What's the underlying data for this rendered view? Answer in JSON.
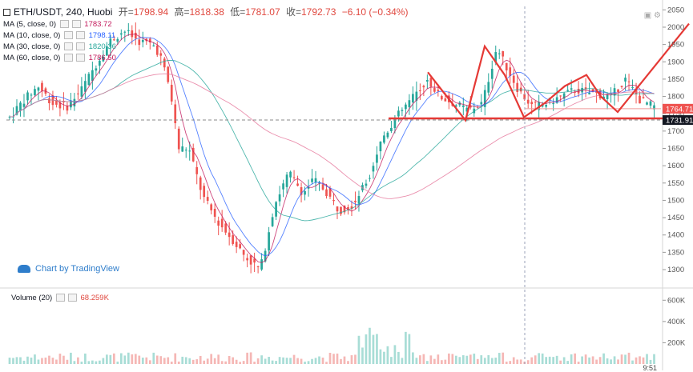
{
  "header": {
    "symbol": "ETH/USDT, 240, Huobi",
    "open_label": "开=",
    "open": "1798.94",
    "high_label": "高=",
    "high": "1818.38",
    "low_label": "低=",
    "low": "1781.07",
    "close_label": "收=",
    "close": "1792.73",
    "change": "−6.10 (−0.34%)"
  },
  "indicators": [
    {
      "label": "MA (5, close, 0)",
      "value": "1783.72",
      "color": "#c2185b"
    },
    {
      "label": "MA (10, close, 0)",
      "value": "1798.11",
      "color": "#2962ff"
    },
    {
      "label": "MA (30, close, 0)",
      "value": "1820.36",
      "color": "#26a69a"
    },
    {
      "label": "MA (60, close, 0)",
      "value": "1786.50",
      "color": "#c2185b"
    }
  ],
  "volume_indicator": {
    "label": "Volume (20)",
    "value": "68.259K"
  },
  "watermark": "Chart by TradingView",
  "clock": "9:51",
  "colors": {
    "up": "#26a69a",
    "down": "#ef5350",
    "pattern": "#e53935",
    "axis_text": "#555555"
  },
  "chart_data": {
    "type": "candlestick",
    "ylim": [
      1270,
      2060
    ],
    "y_ticks": [
      2050,
      2000,
      1950,
      1900,
      1850,
      1800,
      1750,
      1700,
      1650,
      1600,
      1550,
      1500,
      1450,
      1400,
      1350,
      1300
    ],
    "price_labels": [
      {
        "value": "1764.71",
        "price": 1764.71
      },
      {
        "value": "1731.91",
        "price": 1731.91
      }
    ],
    "volume_ticks": [
      "600K",
      "400K",
      "200K"
    ],
    "volume_tick_values": [
      600,
      400,
      200
    ],
    "volume_max": 700,
    "n_candles": 180,
    "price_path": [
      [
        0,
        1740
      ],
      [
        10,
        1790
      ],
      [
        20,
        1830
      ],
      [
        30,
        1780
      ],
      [
        40,
        1770
      ],
      [
        50,
        1820
      ],
      [
        60,
        1890
      ],
      [
        70,
        1960
      ],
      [
        80,
        1990
      ],
      [
        90,
        1960
      ],
      [
        100,
        1950
      ],
      [
        105,
        1920
      ],
      [
        112,
        1820
      ],
      [
        118,
        1650
      ],
      [
        125,
        1650
      ],
      [
        135,
        1510
      ],
      [
        145,
        1440
      ],
      [
        155,
        1390
      ],
      [
        165,
        1335
      ],
      [
        175,
        1300
      ],
      [
        185,
        1490
      ],
      [
        195,
        1580
      ],
      [
        205,
        1520
      ],
      [
        212,
        1560
      ],
      [
        220,
        1530
      ],
      [
        230,
        1470
      ],
      [
        240,
        1490
      ],
      [
        250,
        1560
      ],
      [
        260,
        1680
      ],
      [
        270,
        1740
      ],
      [
        280,
        1790
      ],
      [
        292,
        1850
      ],
      [
        300,
        1800
      ],
      [
        320,
        1760
      ],
      [
        330,
        1780
      ],
      [
        340,
        1940
      ],
      [
        345,
        1900
      ],
      [
        355,
        1820
      ],
      [
        365,
        1770
      ],
      [
        375,
        1780
      ],
      [
        385,
        1800
      ],
      [
        395,
        1820
      ],
      [
        405,
        1810
      ],
      [
        420,
        1800
      ],
      [
        430,
        1850
      ],
      [
        440,
        1790
      ],
      [
        450,
        1770
      ]
    ],
    "neckline": 1731.91,
    "pattern_lines": [
      [
        [
          534,
          1870
        ],
        [
          581,
          1731
        ],
        [
          605,
          1945
        ],
        [
          630,
          1862
        ],
        [
          654,
          1740
        ],
        [
          680,
          1781
        ],
        [
          705,
          1830
        ],
        [
          732,
          1862
        ],
        [
          750,
          1800
        ],
        [
          771,
          1755
        ],
        [
          860,
          2010
        ]
      ]
    ],
    "resistance_line": [
      [
        655,
        1764.71
      ],
      [
        825,
        1764.71
      ]
    ]
  }
}
